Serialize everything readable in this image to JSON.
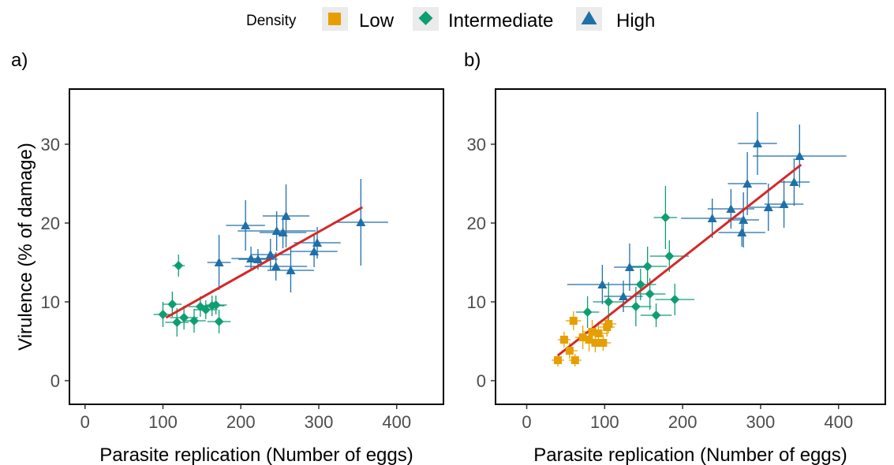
{
  "legend": {
    "title": "Density",
    "placement": "top",
    "entries": [
      {
        "label": "Low",
        "shape": "square",
        "color": "#E69F00"
      },
      {
        "label": "Intermediate",
        "shape": "diamond",
        "color": "#0F9E73"
      },
      {
        "label": "High",
        "shape": "triangle",
        "color": "#1F6FA8"
      }
    ]
  },
  "colors": {
    "low": "#E69F00",
    "intermediate": "#0F9E73",
    "high": "#1F6FA8",
    "fit_line": "#D62728",
    "axis": "#000000",
    "tick_label": "#4D4D4D"
  },
  "chart_data": [
    {
      "type": "scatter",
      "panel_label": "a)",
      "xlabel": "Parasite replication (Number of eggs)",
      "ylabel": "Virulence (% of damage)",
      "xlim": [
        -20,
        460
      ],
      "ylim": [
        -3,
        37
      ],
      "xticks": [
        0,
        100,
        200,
        300,
        400
      ],
      "yticks": [
        0,
        10,
        20,
        30
      ],
      "grid": false,
      "series": [
        {
          "name": "Intermediate",
          "points": [
            {
              "x": 100,
              "y": 8.4,
              "xerr": 12,
              "yerr": 1.6
            },
            {
              "x": 112,
              "y": 9.7,
              "xerr": 12,
              "yerr": 1.6
            },
            {
              "x": 120,
              "y": 14.6,
              "xerr": 8,
              "yerr": 1.4
            },
            {
              "x": 118,
              "y": 7.4,
              "xerr": 15,
              "yerr": 1.8
            },
            {
              "x": 127,
              "y": 8.0,
              "xerr": 18,
              "yerr": 1.5
            },
            {
              "x": 140,
              "y": 7.6,
              "xerr": 15,
              "yerr": 1.5
            },
            {
              "x": 148,
              "y": 9.4,
              "xerr": 15,
              "yerr": 1.3
            },
            {
              "x": 155,
              "y": 9.0,
              "xerr": 15,
              "yerr": 1.2
            },
            {
              "x": 163,
              "y": 9.5,
              "xerr": 16,
              "yerr": 1.3
            },
            {
              "x": 168,
              "y": 9.6,
              "xerr": 14,
              "yerr": 1.2
            },
            {
              "x": 172,
              "y": 7.5,
              "xerr": 15,
              "yerr": 1.5
            }
          ]
        },
        {
          "name": "High",
          "points": [
            {
              "x": 172,
              "y": 15.0,
              "xerr": 15,
              "yerr": 3.5
            },
            {
              "x": 206,
              "y": 19.7,
              "xerr": 25,
              "yerr": 3.2
            },
            {
              "x": 213,
              "y": 15.5,
              "xerr": 25,
              "yerr": 1.5
            },
            {
              "x": 222,
              "y": 15.4,
              "xerr": 25,
              "yerr": 1.3
            },
            {
              "x": 238,
              "y": 16.0,
              "xerr": 25,
              "yerr": 2.0
            },
            {
              "x": 245,
              "y": 14.5,
              "xerr": 40,
              "yerr": 1.8
            },
            {
              "x": 246,
              "y": 19.0,
              "xerr": 50,
              "yerr": 2.5
            },
            {
              "x": 254,
              "y": 18.8,
              "xerr": 30,
              "yerr": 2.0
            },
            {
              "x": 258,
              "y": 20.9,
              "xerr": 30,
              "yerr": 4.0
            },
            {
              "x": 264,
              "y": 14.0,
              "xerr": 30,
              "yerr": 2.8
            },
            {
              "x": 294,
              "y": 16.4,
              "xerr": 30,
              "yerr": 2.0
            },
            {
              "x": 298,
              "y": 17.5,
              "xerr": 30,
              "yerr": 2.0
            },
            {
              "x": 354,
              "y": 20.1,
              "xerr": 35,
              "yerr": 5.5
            }
          ]
        }
      ],
      "fit_line": {
        "x": [
          104,
          356
        ],
        "y": [
          8.0,
          22.0
        ]
      }
    },
    {
      "type": "scatter",
      "panel_label": "b)",
      "xlabel": "Parasite replication (Number of eggs)",
      "ylabel": "",
      "xlim": [
        -40,
        460
      ],
      "ylim": [
        -3,
        37
      ],
      "xticks": [
        0,
        100,
        200,
        300,
        400
      ],
      "yticks": [
        0,
        10,
        20,
        30
      ],
      "grid": false,
      "series": [
        {
          "name": "Low",
          "points": [
            {
              "x": 40,
              "y": 2.6,
              "xerr": 8,
              "yerr": 0.8
            },
            {
              "x": 48,
              "y": 5.2,
              "xerr": 8,
              "yerr": 1.0
            },
            {
              "x": 55,
              "y": 3.8,
              "xerr": 10,
              "yerr": 1.0
            },
            {
              "x": 60,
              "y": 7.6,
              "xerr": 10,
              "yerr": 1.2
            },
            {
              "x": 62,
              "y": 2.6,
              "xerr": 8,
              "yerr": 0.8
            },
            {
              "x": 72,
              "y": 5.5,
              "xerr": 10,
              "yerr": 1.5
            },
            {
              "x": 80,
              "y": 5.2,
              "xerr": 12,
              "yerr": 1.5
            },
            {
              "x": 84,
              "y": 6.2,
              "xerr": 12,
              "yerr": 1.5
            },
            {
              "x": 88,
              "y": 4.8,
              "xerr": 10,
              "yerr": 1.2
            },
            {
              "x": 92,
              "y": 6.0,
              "xerr": 12,
              "yerr": 1.5
            },
            {
              "x": 98,
              "y": 4.8,
              "xerr": 10,
              "yerr": 1.0
            },
            {
              "x": 103,
              "y": 6.8,
              "xerr": 10,
              "yerr": 1.2
            },
            {
              "x": 105,
              "y": 7.2,
              "xerr": 10,
              "yerr": 1.2
            }
          ]
        },
        {
          "name": "Intermediate",
          "points": [
            {
              "x": 78,
              "y": 8.7,
              "xerr": 15,
              "yerr": 2.0
            },
            {
              "x": 105,
              "y": 10.0,
              "xerr": 20,
              "yerr": 2.5
            },
            {
              "x": 140,
              "y": 9.4,
              "xerr": 20,
              "yerr": 2.5
            },
            {
              "x": 146,
              "y": 12.2,
              "xerr": 20,
              "yerr": 2.0
            },
            {
              "x": 155,
              "y": 14.5,
              "xerr": 25,
              "yerr": 2.5
            },
            {
              "x": 158,
              "y": 11.0,
              "xerr": 20,
              "yerr": 2.0
            },
            {
              "x": 166,
              "y": 8.3,
              "xerr": 20,
              "yerr": 1.5
            },
            {
              "x": 178,
              "y": 20.7,
              "xerr": 15,
              "yerr": 4.0
            },
            {
              "x": 183,
              "y": 15.8,
              "xerr": 25,
              "yerr": 2.0
            },
            {
              "x": 190,
              "y": 10.3,
              "xerr": 25,
              "yerr": 2.0
            }
          ]
        },
        {
          "name": "High",
          "points": [
            {
              "x": 97,
              "y": 12.2,
              "xerr": 45,
              "yerr": 2.5
            },
            {
              "x": 124,
              "y": 10.7,
              "xerr": 25,
              "yerr": 2.0
            },
            {
              "x": 132,
              "y": 14.4,
              "xerr": 20,
              "yerr": 3.0
            },
            {
              "x": 238,
              "y": 20.6,
              "xerr": 40,
              "yerr": 2.5
            },
            {
              "x": 262,
              "y": 21.8,
              "xerr": 30,
              "yerr": 2.5
            },
            {
              "x": 276,
              "y": 18.8,
              "xerr": 30,
              "yerr": 1.8
            },
            {
              "x": 278,
              "y": 20.4,
              "xerr": 20,
              "yerr": 3.5
            },
            {
              "x": 283,
              "y": 25.0,
              "xerr": 25,
              "yerr": 4.0
            },
            {
              "x": 296,
              "y": 30.1,
              "xerr": 25,
              "yerr": 4.0
            },
            {
              "x": 310,
              "y": 22.0,
              "xerr": 25,
              "yerr": 3.0
            },
            {
              "x": 330,
              "y": 22.4,
              "xerr": 25,
              "yerr": 3.0
            },
            {
              "x": 343,
              "y": 25.2,
              "xerr": 20,
              "yerr": 3.0
            },
            {
              "x": 350,
              "y": 28.5,
              "xerr": 60,
              "yerr": 4.0
            }
          ]
        }
      ],
      "fit_line": {
        "x": [
          40,
          352
        ],
        "y": [
          3.2,
          27.4
        ]
      }
    }
  ]
}
